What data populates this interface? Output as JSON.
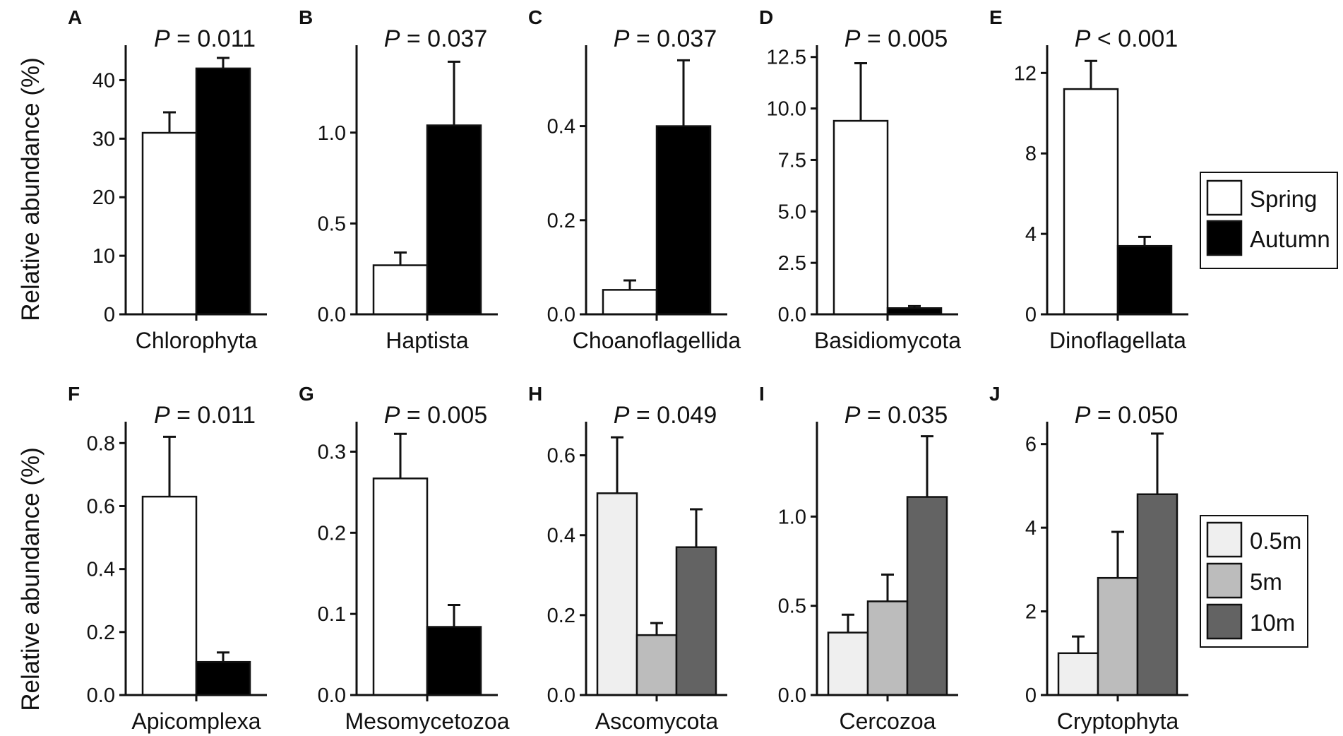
{
  "figure": {
    "ylabel": "Relative abundance (%)",
    "p_prefix": "P"
  },
  "colors": {
    "spring": "#ffffff",
    "autumn": "#000000",
    "d05": "#efefef",
    "d5": "#bcbcbc",
    "d10": "#636363"
  },
  "legends": [
    {
      "id": "season",
      "entries": [
        {
          "label": "Spring",
          "color_key": "spring"
        },
        {
          "label": "Autumn",
          "color_key": "autumn"
        }
      ]
    },
    {
      "id": "depth",
      "entries": [
        {
          "label": "0.5m",
          "color_key": "d05"
        },
        {
          "label": "5m",
          "color_key": "d5"
        },
        {
          "label": "10m",
          "color_key": "d10"
        }
      ]
    }
  ],
  "chart_data": [
    {
      "panel": "A",
      "type": "bar",
      "p_text": " = 0.011",
      "xlabel": "Chlorophyta",
      "ylim": [
        0,
        45
      ],
      "yticks": [
        0,
        10,
        20,
        30,
        40
      ],
      "tick_labels": [
        "0",
        "10",
        "20",
        "30",
        "40"
      ],
      "series": [
        {
          "name": "Spring",
          "color_key": "spring",
          "value": 31,
          "error": 3.5
        },
        {
          "name": "Autumn",
          "color_key": "autumn",
          "value": 42,
          "error": 1.8
        }
      ]
    },
    {
      "panel": "B",
      "type": "bar",
      "p_text": " = 0.037",
      "xlabel": "Haptista",
      "ylim": [
        0,
        1.45
      ],
      "yticks": [
        0,
        0.5,
        1.0
      ],
      "tick_labels": [
        "0.0",
        "0.5",
        "1.0"
      ],
      "series": [
        {
          "name": "Spring",
          "color_key": "spring",
          "value": 0.27,
          "error": 0.07
        },
        {
          "name": "Autumn",
          "color_key": "autumn",
          "value": 1.04,
          "error": 0.35
        }
      ]
    },
    {
      "panel": "C",
      "type": "bar",
      "p_text": " = 0.037",
      "xlabel": "Choanoflagellida",
      "ylim": [
        0,
        0.56
      ],
      "yticks": [
        0,
        0.2,
        0.4
      ],
      "tick_labels": [
        "0.0",
        "0.2",
        "0.4"
      ],
      "series": [
        {
          "name": "Spring",
          "color_key": "spring",
          "value": 0.052,
          "error": 0.02
        },
        {
          "name": "Autumn",
          "color_key": "autumn",
          "value": 0.4,
          "error": 0.14
        }
      ]
    },
    {
      "panel": "D",
      "type": "bar",
      "p_text": " = 0.005",
      "xlabel": "Basidiomycota",
      "ylim": [
        0,
        12.8
      ],
      "yticks": [
        0,
        2.5,
        5.0,
        7.5,
        10.0,
        12.5
      ],
      "tick_labels": [
        "0.0",
        "2.5",
        "5.0",
        "7.5",
        "10.0",
        "12.5"
      ],
      "series": [
        {
          "name": "Spring",
          "color_key": "spring",
          "value": 9.4,
          "error": 2.8
        },
        {
          "name": "Autumn",
          "color_key": "autumn",
          "value": 0.3,
          "error": 0.1
        }
      ]
    },
    {
      "panel": "E",
      "type": "bar",
      "p_text": " < 0.001",
      "xlabel": "Dinoflagellata",
      "ylim": [
        0,
        13.1
      ],
      "yticks": [
        0,
        4,
        8,
        12
      ],
      "tick_labels": [
        "0",
        "4",
        "8",
        "12"
      ],
      "series": [
        {
          "name": "Spring",
          "color_key": "spring",
          "value": 11.2,
          "error": 1.4
        },
        {
          "name": "Autumn",
          "color_key": "autumn",
          "value": 3.4,
          "error": 0.45
        }
      ]
    },
    {
      "panel": "F",
      "type": "bar",
      "p_text": " = 0.011",
      "xlabel": "Apicomplexa",
      "ylim": [
        0,
        0.85
      ],
      "yticks": [
        0,
        0.2,
        0.4,
        0.6,
        0.8
      ],
      "tick_labels": [
        "0.0",
        "0.2",
        "0.4",
        "0.6",
        "0.8"
      ],
      "series": [
        {
          "name": "Spring",
          "color_key": "spring",
          "value": 0.63,
          "error": 0.19
        },
        {
          "name": "Autumn",
          "color_key": "autumn",
          "value": 0.105,
          "error": 0.03
        }
      ]
    },
    {
      "panel": "G",
      "type": "bar",
      "p_text": " = 0.005",
      "xlabel": "Mesomycetozoa",
      "ylim": [
        0,
        0.33
      ],
      "yticks": [
        0,
        0.1,
        0.2,
        0.3
      ],
      "tick_labels": [
        "0.0",
        "0.1",
        "0.2",
        "0.3"
      ],
      "series": [
        {
          "name": "Spring",
          "color_key": "spring",
          "value": 0.267,
          "error": 0.055
        },
        {
          "name": "Autumn",
          "color_key": "autumn",
          "value": 0.084,
          "error": 0.027
        }
      ]
    },
    {
      "panel": "H",
      "type": "bar",
      "p_text": " = 0.049",
      "xlabel": "Ascomycota",
      "ylim": [
        0,
        0.67
      ],
      "yticks": [
        0,
        0.2,
        0.4,
        0.6
      ],
      "tick_labels": [
        "0.0",
        "0.2",
        "0.4",
        "0.6"
      ],
      "series": [
        {
          "name": "0.5m",
          "color_key": "d05",
          "value": 0.505,
          "error": 0.14
        },
        {
          "name": "5m",
          "color_key": "d5",
          "value": 0.15,
          "error": 0.03
        },
        {
          "name": "10m",
          "color_key": "d10",
          "value": 0.37,
          "error": 0.095
        }
      ]
    },
    {
      "panel": "I",
      "type": "bar",
      "p_text": " = 0.035",
      "xlabel": "Cercozoa",
      "ylim": [
        0,
        1.5
      ],
      "yticks": [
        0,
        0.5,
        1.0
      ],
      "tick_labels": [
        "0.0",
        "0.5",
        "1.0"
      ],
      "series": [
        {
          "name": "0.5m",
          "color_key": "d05",
          "value": 0.35,
          "error": 0.1
        },
        {
          "name": "5m",
          "color_key": "d5",
          "value": 0.525,
          "error": 0.15
        },
        {
          "name": "10m",
          "color_key": "d10",
          "value": 1.11,
          "error": 0.34
        }
      ]
    },
    {
      "panel": "J",
      "type": "bar",
      "p_text": " = 0.050",
      "xlabel": "Cryptophyta",
      "ylim": [
        0,
        6.4
      ],
      "yticks": [
        0,
        2,
        4,
        6
      ],
      "tick_labels": [
        "0",
        "2",
        "4",
        "6"
      ],
      "series": [
        {
          "name": "0.5m",
          "color_key": "d05",
          "value": 1.0,
          "error": 0.4
        },
        {
          "name": "5m",
          "color_key": "d5",
          "value": 2.8,
          "error": 1.1
        },
        {
          "name": "10m",
          "color_key": "d10",
          "value": 4.8,
          "error": 1.45
        }
      ]
    }
  ]
}
